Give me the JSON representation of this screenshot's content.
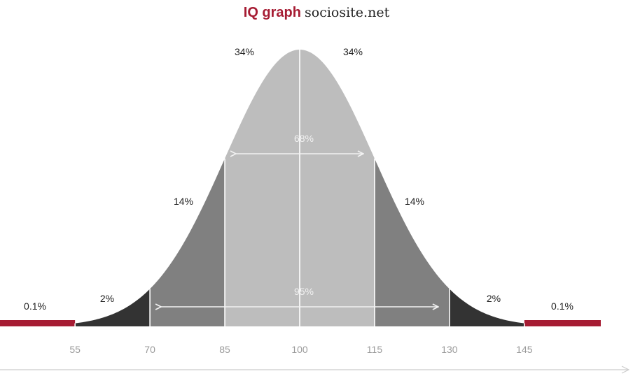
{
  "header": {
    "title_bold": "IQ graph",
    "title_site": "sociosite.net"
  },
  "chart_data": {
    "type": "area",
    "title": "IQ graph sociosite.net",
    "x_ticks": [
      55,
      70,
      85,
      100,
      115,
      130,
      145
    ],
    "xlim": [
      40,
      160
    ],
    "grid": false,
    "bands": [
      {
        "from": 40,
        "to": 55,
        "percent": "0.1%",
        "color": "#a61c33"
      },
      {
        "from": 55,
        "to": 70,
        "percent": "2%",
        "color": "#333333"
      },
      {
        "from": 70,
        "to": 85,
        "percent": "14%",
        "color": "#808080"
      },
      {
        "from": 85,
        "to": 100,
        "percent": "34%",
        "color": "#bdbdbd"
      },
      {
        "from": 100,
        "to": 115,
        "percent": "34%",
        "color": "#bdbdbd"
      },
      {
        "from": 115,
        "to": 130,
        "percent": "14%",
        "color": "#808080"
      },
      {
        "from": 130,
        "to": 145,
        "percent": "2%",
        "color": "#333333"
      },
      {
        "from": 145,
        "to": 160,
        "percent": "0.1%",
        "color": "#a61c33"
      }
    ],
    "ranges": [
      {
        "from": 85,
        "to": 115,
        "label": "68%"
      },
      {
        "from": 70,
        "to": 130,
        "label": "95%"
      }
    ]
  }
}
